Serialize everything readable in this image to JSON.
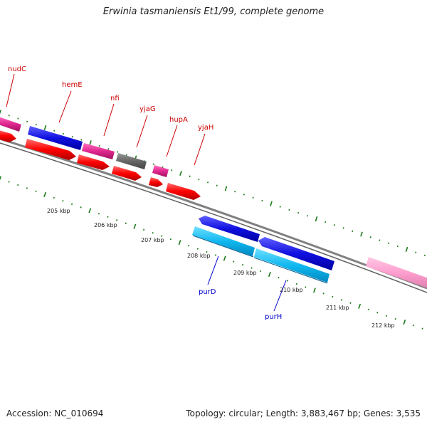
{
  "title": "Erwinia tasmaniensis Et1/99, complete genome",
  "accession": "Accession: NC_010694",
  "summary": "Topology: circular; Length: 3,883,467 bp; Genes: 3,535",
  "colors": {
    "background": "#ffffff",
    "backbone": "#808080",
    "tick": "#1a7a1a",
    "forward_label": "#cc0000",
    "reverse_label": "#0000cc",
    "gene_red": "#ff0000",
    "gene_magenta": "#e0288f",
    "gene_blue": "#1010e0",
    "gene_cyan": "#10b8f0",
    "gene_gray": "#666666",
    "gene_pink": "#ff9fcf"
  },
  "scale_labels": [
    "205 kbp",
    "206 kbp",
    "207 kbp",
    "208 kbp",
    "209 kbp",
    "210 kbp",
    "211 kbp",
    "212 kbp"
  ],
  "gene_labels_forward": [
    "nudC",
    "hemE",
    "nfi",
    "yjaG",
    "hupA",
    "yjaH"
  ],
  "gene_labels_reverse": [
    "purD",
    "purH"
  ]
}
